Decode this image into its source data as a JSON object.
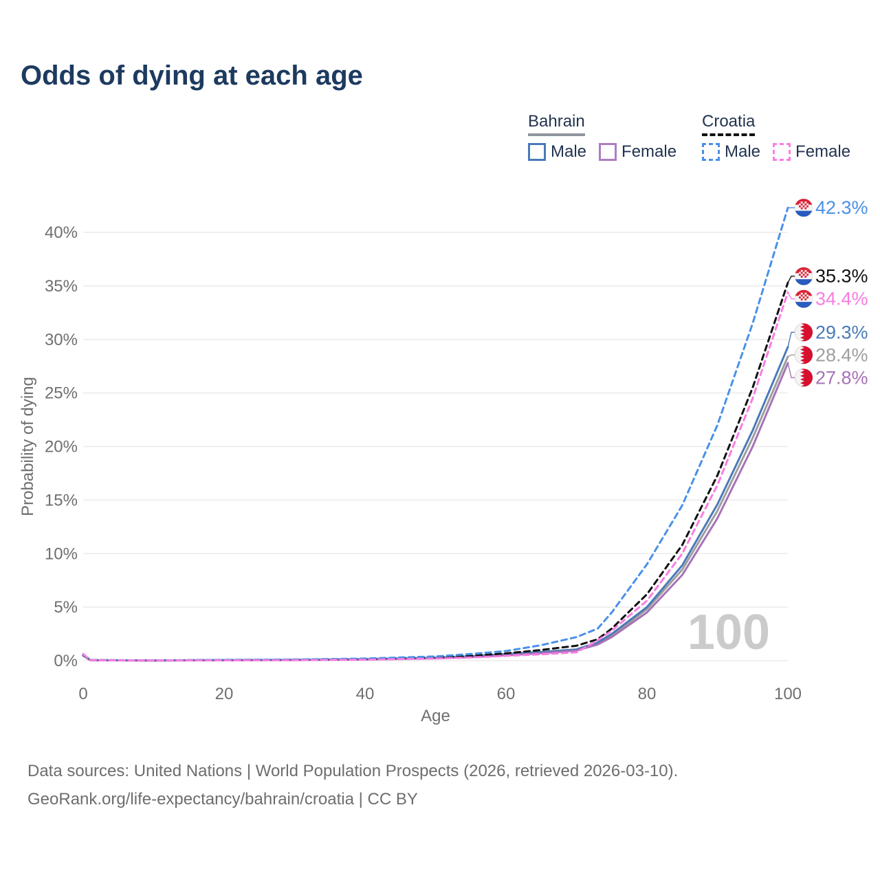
{
  "title": "Odds of dying at each age",
  "legend": {
    "groups": [
      {
        "name": "Bahrain",
        "line_style": "solid",
        "underline_color": "#8f969d",
        "items": [
          {
            "label": "Male",
            "color": "#4a7ab8"
          },
          {
            "label": "Female",
            "color": "#b07cc2"
          }
        ]
      },
      {
        "name": "Croatia",
        "line_style": "dashed",
        "underline_color": "#111111",
        "items": [
          {
            "label": "Male",
            "color": "#4a90e8"
          },
          {
            "label": "Female",
            "color": "#fb7de6"
          }
        ]
      }
    ]
  },
  "chart_data": {
    "type": "line",
    "title": "Odds of dying at each age",
    "xlabel": "Age",
    "ylabel": "Probability of dying",
    "x_ticks": [
      0,
      20,
      40,
      60,
      80,
      100
    ],
    "y_ticks": [
      "0%",
      "5%",
      "10%",
      "15%",
      "20%",
      "25%",
      "30%",
      "35%",
      "40%"
    ],
    "xlim": [
      0,
      100
    ],
    "ylim": [
      0,
      43
    ],
    "grid": "horizontal",
    "legend_position": "top-right",
    "age_indicator": "100",
    "x": [
      0,
      1,
      10,
      20,
      30,
      40,
      50,
      55,
      60,
      65,
      70,
      73,
      75,
      80,
      85,
      90,
      95,
      100
    ],
    "series": [
      {
        "name": "Bahrain total",
        "flag": "bahrain",
        "color": "#9e9e9e",
        "dash": false,
        "end_label": "28.4%",
        "values": [
          0.55,
          0.05,
          0.02,
          0.05,
          0.07,
          0.12,
          0.25,
          0.38,
          0.56,
          0.75,
          1.0,
          1.6,
          2.35,
          4.8,
          8.5,
          14.0,
          20.8,
          28.4
        ]
      },
      {
        "name": "Bahrain male",
        "flag": "bahrain",
        "color": "#4a7ab8",
        "dash": false,
        "end_label": "29.3%",
        "values": [
          0.6,
          0.05,
          0.02,
          0.06,
          0.08,
          0.14,
          0.28,
          0.42,
          0.62,
          0.82,
          1.05,
          1.7,
          2.5,
          5.0,
          8.9,
          14.6,
          21.5,
          29.3
        ]
      },
      {
        "name": "Bahrain female",
        "flag": "bahrain",
        "color": "#a672b5",
        "dash": false,
        "end_label": "27.8%",
        "values": [
          0.5,
          0.04,
          0.01,
          0.04,
          0.06,
          0.1,
          0.22,
          0.33,
          0.5,
          0.7,
          0.95,
          1.5,
          2.2,
          4.5,
          8.0,
          13.3,
          20.0,
          27.8
        ]
      },
      {
        "name": "Croatia total",
        "flag": "croatia",
        "color": "#111111",
        "dash": true,
        "end_label": "35.3%",
        "values": [
          0.5,
          0.05,
          0.02,
          0.06,
          0.09,
          0.15,
          0.3,
          0.45,
          0.68,
          1.0,
          1.4,
          2.0,
          3.0,
          6.2,
          10.8,
          17.3,
          25.5,
          35.3
        ]
      },
      {
        "name": "Croatia male",
        "flag": "croatia",
        "color": "#4a90e8",
        "dash": true,
        "end_label": "42.3%",
        "values": [
          0.55,
          0.05,
          0.02,
          0.08,
          0.11,
          0.2,
          0.4,
          0.62,
          0.9,
          1.45,
          2.2,
          3.0,
          4.5,
          9.0,
          14.5,
          22.0,
          31.5,
          42.3
        ]
      },
      {
        "name": "Croatia female",
        "flag": "croatia",
        "color": "#f97ce3",
        "dash": true,
        "end_label": "34.4%",
        "values": [
          0.62,
          0.04,
          0.01,
          0.03,
          0.05,
          0.09,
          0.2,
          0.3,
          0.45,
          0.6,
          0.78,
          1.9,
          2.8,
          5.6,
          10.0,
          16.4,
          24.5,
          34.4
        ]
      }
    ]
  },
  "footer": {
    "line1": "Data sources: United Nations | World Population Prospects (2026, retrieved 2026-03-10).",
    "line2": "GeoRank.org/life-expectancy/bahrain/croatia | CC BY"
  }
}
